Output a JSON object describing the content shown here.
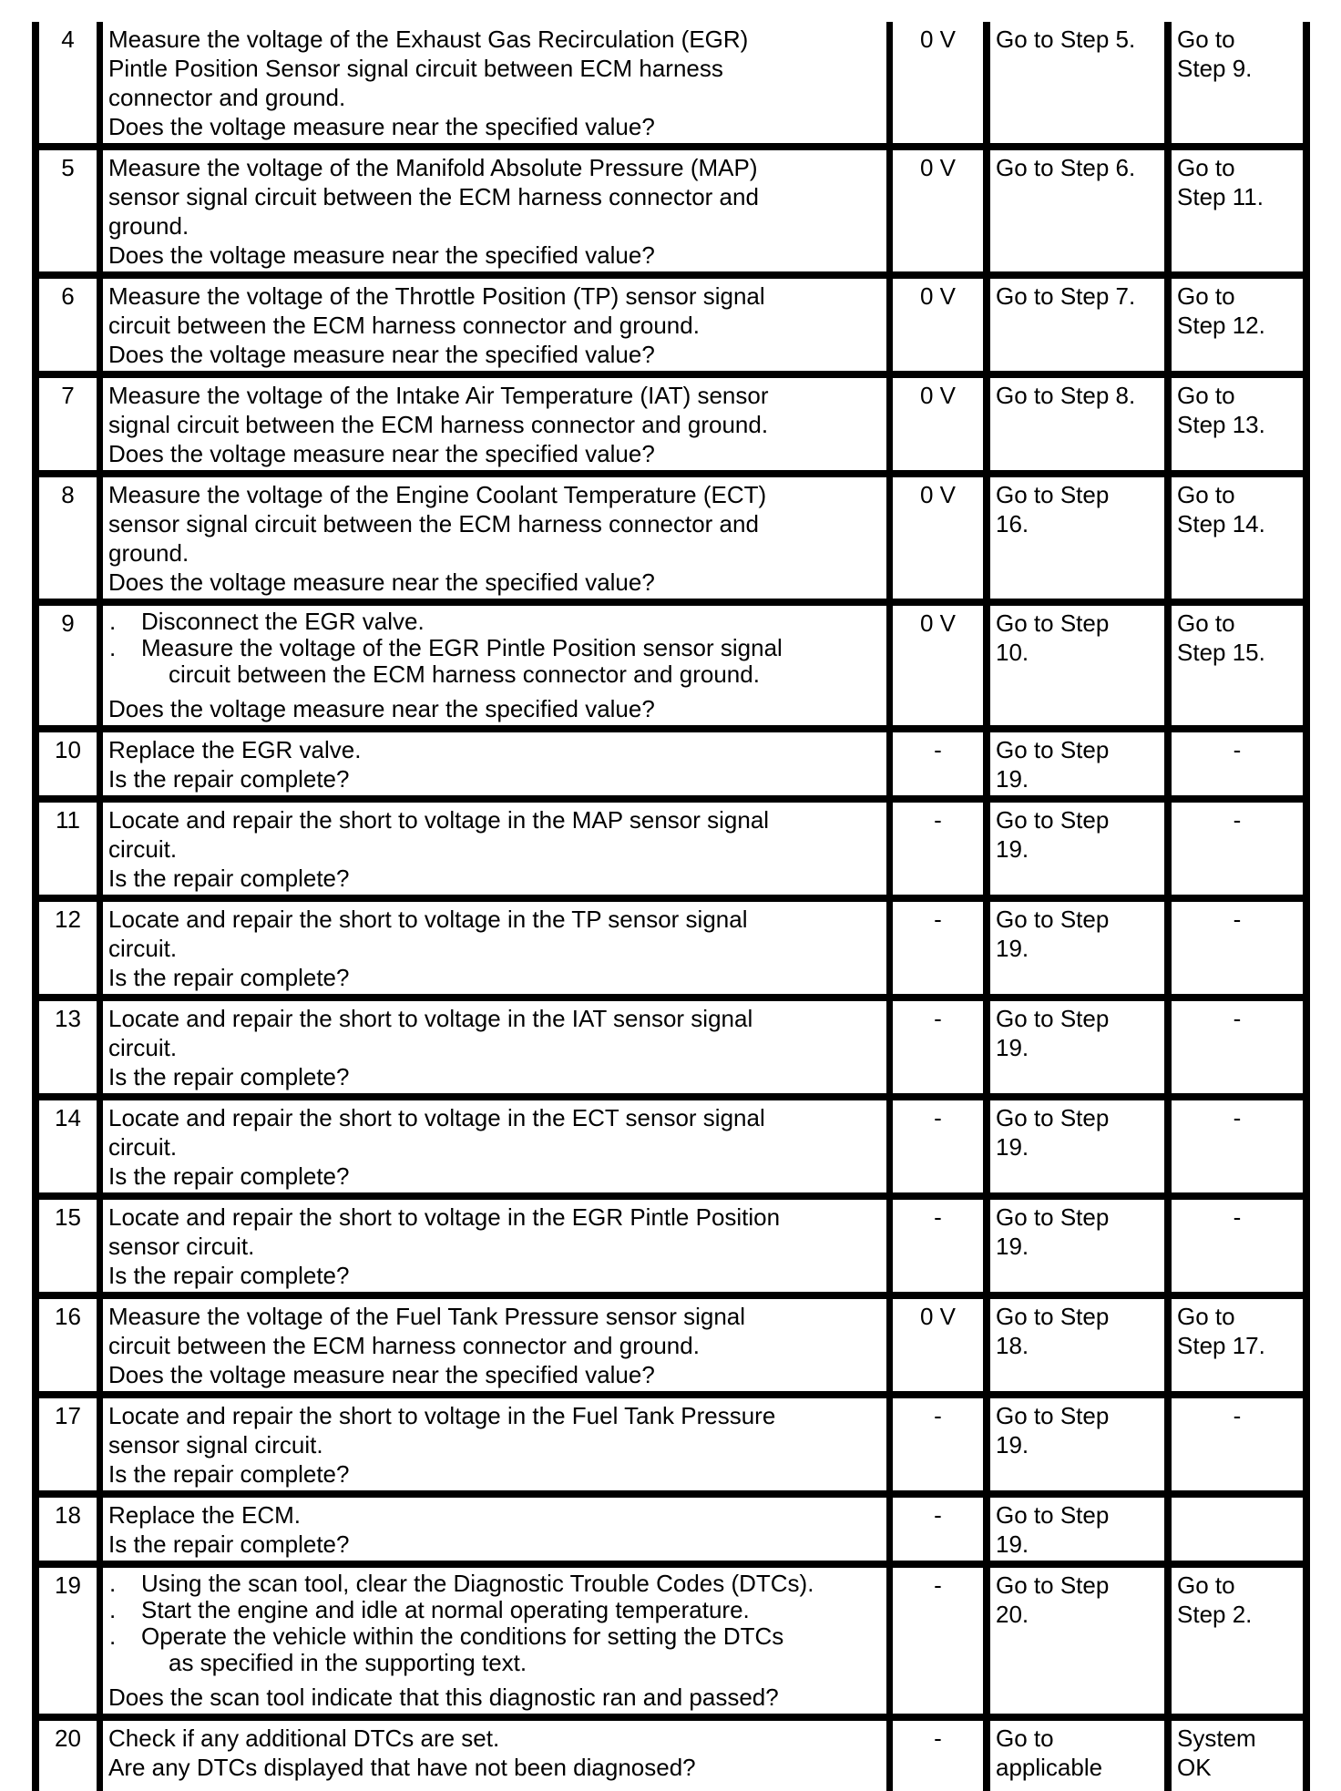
{
  "document": {
    "description_label": "Diagnostic step table (continuation page, rows 4-20)"
  },
  "colors": {
    "background": "#ffffff",
    "text": "#000000",
    "border": "#000000"
  },
  "table": {
    "bullet_char": ".",
    "rows": [
      {
        "step": "4",
        "action": [
          {
            "type": "line",
            "text": "Measure the voltage of the Exhaust Gas Recirculation (EGR)"
          },
          {
            "type": "line",
            "text": "Pintle Position Sensor signal circuit between ECM harness"
          },
          {
            "type": "line",
            "text": "connector and ground."
          },
          {
            "type": "line",
            "text": "Does the voltage measure near the specified value?"
          }
        ],
        "value": "0 V",
        "yes": [
          "Go to Step 5."
        ],
        "no": [
          "Go to",
          "Step 9."
        ],
        "no_center": false
      },
      {
        "step": "5",
        "action": [
          {
            "type": "line",
            "text": "Measure the voltage of the Manifold Absolute Pressure (MAP)"
          },
          {
            "type": "line",
            "text": "sensor signal circuit between the ECM harness connector and"
          },
          {
            "type": "line",
            "text": "ground."
          },
          {
            "type": "line",
            "text": "Does the voltage measure near the specified value?"
          }
        ],
        "value": "0 V",
        "yes": [
          "Go to Step 6."
        ],
        "no": [
          "Go to",
          "Step 11."
        ],
        "no_center": false
      },
      {
        "step": "6",
        "action": [
          {
            "type": "line",
            "text": "Measure the voltage of the Throttle Position (TP) sensor signal"
          },
          {
            "type": "line",
            "text": "circuit between the ECM harness connector and ground."
          },
          {
            "type": "line",
            "text": "Does the voltage measure near the specified value?"
          }
        ],
        "value": "0 V",
        "yes": [
          "Go to Step 7."
        ],
        "no": [
          "Go to",
          "Step 12."
        ],
        "no_center": false
      },
      {
        "step": "7",
        "action": [
          {
            "type": "line",
            "text": "Measure the voltage of the Intake Air Temperature (IAT) sensor"
          },
          {
            "type": "line",
            "text": "signal circuit between the ECM harness connector and ground."
          },
          {
            "type": "line",
            "text": "Does the voltage measure near the specified value?"
          }
        ],
        "value": "0 V",
        "yes": [
          "Go to Step 8."
        ],
        "no": [
          "Go to",
          "Step 13."
        ],
        "no_center": false
      },
      {
        "step": "8",
        "action": [
          {
            "type": "line",
            "text": "Measure the voltage of the Engine Coolant Temperature (ECT)"
          },
          {
            "type": "line",
            "text": "sensor signal circuit between the ECM harness connector and"
          },
          {
            "type": "line",
            "text": "ground."
          },
          {
            "type": "line",
            "text": "Does the voltage measure near the specified value?"
          }
        ],
        "value": "0 V",
        "yes": [
          "Go to Step",
          "16."
        ],
        "no": [
          "Go to",
          "Step 14."
        ],
        "no_center": false
      },
      {
        "step": "9",
        "action": [
          {
            "type": "bullet",
            "text": "Disconnect the EGR valve."
          },
          {
            "type": "bullet",
            "text": "Measure the voltage of the EGR Pintle Position sensor signal"
          },
          {
            "type": "cont",
            "text": "circuit between the ECM harness connector and ground."
          },
          {
            "type": "question",
            "text": "Does the voltage measure near the specified value?"
          }
        ],
        "value": "0 V",
        "yes": [
          "Go to Step",
          "10."
        ],
        "no": [
          "Go to",
          "Step 15."
        ],
        "no_center": false
      },
      {
        "step": "10",
        "action": [
          {
            "type": "line",
            "text": "Replace the EGR valve."
          },
          {
            "type": "line",
            "text": "Is the repair complete?"
          }
        ],
        "value": "-",
        "yes": [
          "Go to Step",
          "19."
        ],
        "no": [
          "-"
        ],
        "no_center": true
      },
      {
        "step": "11",
        "action": [
          {
            "type": "line",
            "text": "Locate and repair the short to voltage in the MAP sensor signal"
          },
          {
            "type": "line",
            "text": "circuit."
          },
          {
            "type": "line",
            "text": "Is the repair complete?"
          }
        ],
        "value": "-",
        "yes": [
          "Go to Step",
          "19."
        ],
        "no": [
          "-"
        ],
        "no_center": true
      },
      {
        "step": "12",
        "action": [
          {
            "type": "line",
            "text": "Locate and repair the short to voltage in the TP sensor signal"
          },
          {
            "type": "line",
            "text": "circuit."
          },
          {
            "type": "line",
            "text": "Is the repair complete?"
          }
        ],
        "value": "-",
        "yes": [
          "Go to Step",
          "19."
        ],
        "no": [
          "-"
        ],
        "no_center": true
      },
      {
        "step": "13",
        "action": [
          {
            "type": "line",
            "text": "Locate and repair the short to voltage in the IAT sensor signal"
          },
          {
            "type": "line",
            "text": "circuit."
          },
          {
            "type": "line",
            "text": "Is the repair complete?"
          }
        ],
        "value": "-",
        "yes": [
          "Go to Step",
          "19."
        ],
        "no": [
          "-"
        ],
        "no_center": true
      },
      {
        "step": "14",
        "action": [
          {
            "type": "line",
            "text": "Locate and repair the short to voltage in the ECT sensor signal"
          },
          {
            "type": "line",
            "text": "circuit."
          },
          {
            "type": "line",
            "text": "Is the repair complete?"
          }
        ],
        "value": "-",
        "yes": [
          "Go to Step",
          "19."
        ],
        "no": [
          "-"
        ],
        "no_center": true
      },
      {
        "step": "15",
        "action": [
          {
            "type": "line",
            "text": "Locate and repair the short to voltage in the EGR Pintle Position"
          },
          {
            "type": "line",
            "text": "sensor circuit."
          },
          {
            "type": "line",
            "text": "Is the repair complete?"
          }
        ],
        "value": "-",
        "yes": [
          "Go to Step",
          "19."
        ],
        "no": [
          "-"
        ],
        "no_center": true
      },
      {
        "step": "16",
        "action": [
          {
            "type": "line",
            "text": "Measure the voltage of the Fuel Tank Pressure sensor signal"
          },
          {
            "type": "line",
            "text": "circuit between the ECM harness connector and ground."
          },
          {
            "type": "line",
            "text": "Does the voltage measure near the specified value?"
          }
        ],
        "value": "0 V",
        "yes": [
          "Go to Step",
          "18."
        ],
        "no": [
          "Go to",
          "Step 17."
        ],
        "no_center": false
      },
      {
        "step": "17",
        "action": [
          {
            "type": "line",
            "text": "Locate and repair the short to voltage in the Fuel Tank Pressure"
          },
          {
            "type": "line",
            "text": "sensor signal circuit."
          },
          {
            "type": "line",
            "text": "Is the repair complete?"
          }
        ],
        "value": "-",
        "yes": [
          "Go to Step",
          "19."
        ],
        "no": [
          "-"
        ],
        "no_center": true
      },
      {
        "step": "18",
        "action": [
          {
            "type": "line",
            "text": "Replace the ECM."
          },
          {
            "type": "line",
            "text": "Is the repair complete?"
          }
        ],
        "value": "-",
        "yes": [
          "Go to Step",
          "19."
        ],
        "no": [],
        "no_center": false
      },
      {
        "step": "19",
        "action": [
          {
            "type": "bullet",
            "text": "Using the scan tool, clear the Diagnostic Trouble Codes (DTCs)."
          },
          {
            "type": "bullet",
            "text": "Start the engine and idle at normal operating temperature."
          },
          {
            "type": "bullet",
            "text": "Operate the vehicle within the conditions for setting the DTCs"
          },
          {
            "type": "cont",
            "text": "as specified in the supporting text."
          },
          {
            "type": "question",
            "text": "Does the scan tool indicate that this diagnostic ran and passed?"
          }
        ],
        "value": "-",
        "yes": [
          "Go to Step",
          "20."
        ],
        "no": [
          "Go to",
          "Step 2."
        ],
        "no_center": false
      },
      {
        "step": "20",
        "action": [
          {
            "type": "line",
            "text": "Check if any additional DTCs are set."
          },
          {
            "type": "line",
            "text": "Are any DTCs displayed that have not been diagnosed?"
          }
        ],
        "value": "-",
        "yes": [
          "Go to",
          "applicable"
        ],
        "no": [
          "System",
          "OK"
        ],
        "no_center": false
      }
    ]
  }
}
